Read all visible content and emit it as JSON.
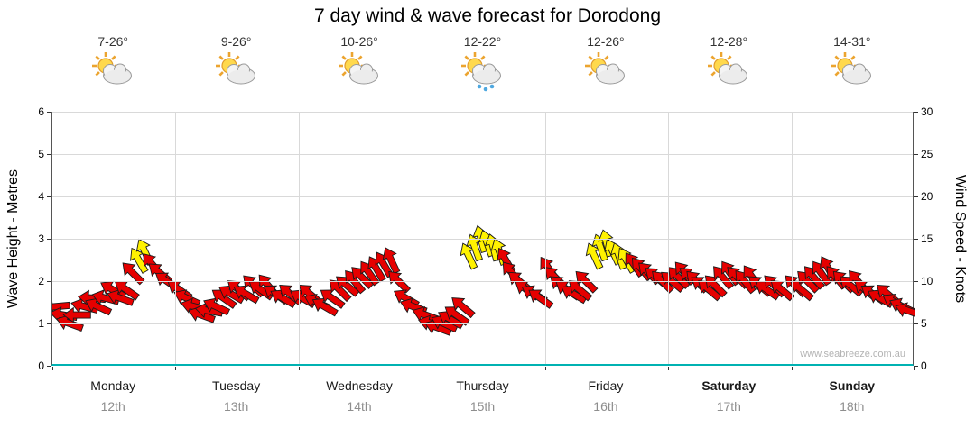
{
  "page": {
    "watermark": "www.seabreeze.com.au"
  },
  "chart_data": {
    "type": "scatter",
    "title": "7 day wind & wave forecast for Dorodong",
    "left_axis": {
      "label": "Wave Height - Metres",
      "min": 0,
      "max": 6,
      "ticks": [
        0,
        1,
        2,
        3,
        4,
        5,
        6
      ]
    },
    "right_axis": {
      "label": "Wind Speed - Knots",
      "min": 0,
      "max": 30,
      "ticks": [
        0,
        5,
        10,
        15,
        20,
        25,
        30
      ]
    },
    "grid": "on",
    "days": [
      {
        "name": "Monday",
        "date": "12th",
        "temp": "7-26°",
        "icon": "sun-cloud",
        "weekend": false
      },
      {
        "name": "Tuesday",
        "date": "13th",
        "temp": "9-26°",
        "icon": "sun-cloud",
        "weekend": false
      },
      {
        "name": "Wednesday",
        "date": "14th",
        "temp": "10-26°",
        "icon": "sun-cloud",
        "weekend": false
      },
      {
        "name": "Thursday",
        "date": "15th",
        "temp": "12-22°",
        "icon": "sun-cloud-rain",
        "weekend": false
      },
      {
        "name": "Friday",
        "date": "16th",
        "temp": "12-26°",
        "icon": "sun-cloud",
        "weekend": false
      },
      {
        "name": "Saturday",
        "date": "17th",
        "temp": "12-28°",
        "icon": "sun-cloud",
        "weekend": true
      },
      {
        "name": "Sunday",
        "date": "18th",
        "temp": "14-31°",
        "icon": "sun-cloud",
        "weekend": true
      }
    ],
    "colors": {
      "r": "#e60000",
      "y": "#fff200",
      "wave_line": "#00b2b2"
    },
    "arrow_format": [
      "day_fraction_0_to_7",
      "wind_speed_knots",
      "direction_deg_0_is_up_negative_is_left",
      "color_r_red_y_yellow"
    ],
    "wind_arrows": [
      [
        0.03,
        7,
        -95,
        "r"
      ],
      [
        0.09,
        6,
        -80,
        "r"
      ],
      [
        0.14,
        5,
        -70,
        "r"
      ],
      [
        0.2,
        6,
        -90,
        "r"
      ],
      [
        0.26,
        7,
        -75,
        "r"
      ],
      [
        0.32,
        8,
        -85,
        "r"
      ],
      [
        0.37,
        7,
        -65,
        "r"
      ],
      [
        0.43,
        8,
        -75,
        "r"
      ],
      [
        0.49,
        9,
        -60,
        "r"
      ],
      [
        0.55,
        8,
        -70,
        "r"
      ],
      [
        0.6,
        9,
        -55,
        "r"
      ],
      [
        0.65,
        11,
        -45,
        "r"
      ],
      [
        0.7,
        12.5,
        -30,
        "y"
      ],
      [
        0.75,
        13.5,
        -25,
        "y"
      ],
      [
        0.81,
        12,
        -40,
        "r"
      ],
      [
        0.87,
        11,
        -50,
        "r"
      ],
      [
        0.93,
        10,
        -55,
        "r"
      ],
      [
        1.03,
        9,
        -55,
        "r"
      ],
      [
        1.09,
        8,
        -65,
        "r"
      ],
      [
        1.15,
        7,
        -75,
        "r"
      ],
      [
        1.21,
        6,
        -70,
        "r"
      ],
      [
        1.27,
        6.5,
        -80,
        "r"
      ],
      [
        1.33,
        7,
        -65,
        "r"
      ],
      [
        1.39,
        8,
        -55,
        "r"
      ],
      [
        1.45,
        8.5,
        -60,
        "r"
      ],
      [
        1.51,
        9,
        -50,
        "r"
      ],
      [
        1.57,
        8.5,
        -60,
        "r"
      ],
      [
        1.63,
        9.5,
        -45,
        "r"
      ],
      [
        1.69,
        9,
        -55,
        "r"
      ],
      [
        1.75,
        9.5,
        -40,
        "r"
      ],
      [
        1.81,
        8.5,
        -55,
        "r"
      ],
      [
        1.87,
        8,
        -60,
        "r"
      ],
      [
        1.93,
        8.5,
        -50,
        "r"
      ],
      [
        2.03,
        8,
        -60,
        "r"
      ],
      [
        2.09,
        8.5,
        -50,
        "r"
      ],
      [
        2.15,
        7.5,
        -65,
        "r"
      ],
      [
        2.21,
        7,
        -60,
        "r"
      ],
      [
        2.27,
        8,
        -55,
        "r"
      ],
      [
        2.33,
        9,
        -45,
        "r"
      ],
      [
        2.39,
        9.5,
        -50,
        "r"
      ],
      [
        2.45,
        10,
        -40,
        "r"
      ],
      [
        2.51,
        10.5,
        -45,
        "r"
      ],
      [
        2.57,
        11,
        -35,
        "r"
      ],
      [
        2.63,
        11.5,
        -30,
        "r"
      ],
      [
        2.69,
        12,
        -30,
        "r"
      ],
      [
        2.75,
        12.5,
        -25,
        "r"
      ],
      [
        2.81,
        10,
        -45,
        "r"
      ],
      [
        2.87,
        8,
        -60,
        "r"
      ],
      [
        2.93,
        7,
        -70,
        "r"
      ],
      [
        3.03,
        6,
        -70,
        "r"
      ],
      [
        3.08,
        5,
        -75,
        "r"
      ],
      [
        3.13,
        4.5,
        -70,
        "r"
      ],
      [
        3.18,
        5,
        -65,
        "r"
      ],
      [
        3.23,
        5.5,
        -60,
        "r"
      ],
      [
        3.28,
        6,
        -55,
        "r"
      ],
      [
        3.33,
        7,
        -50,
        "r"
      ],
      [
        3.38,
        13,
        -25,
        "y"
      ],
      [
        3.43,
        14,
        -20,
        "y"
      ],
      [
        3.48,
        15,
        -15,
        "y"
      ],
      [
        3.53,
        14.5,
        -20,
        "y"
      ],
      [
        3.58,
        14,
        -15,
        "y"
      ],
      [
        3.63,
        13.5,
        -20,
        "y"
      ],
      [
        3.68,
        12.5,
        -30,
        "r"
      ],
      [
        3.73,
        11,
        -40,
        "r"
      ],
      [
        3.79,
        10,
        -50,
        "r"
      ],
      [
        3.85,
        9,
        -55,
        "r"
      ],
      [
        3.91,
        8.5,
        -60,
        "r"
      ],
      [
        3.96,
        8,
        -55,
        "r"
      ],
      [
        4.03,
        11.5,
        -35,
        "r"
      ],
      [
        4.08,
        10.5,
        -45,
        "r"
      ],
      [
        4.13,
        9.5,
        -50,
        "r"
      ],
      [
        4.18,
        9,
        -55,
        "r"
      ],
      [
        4.23,
        8.5,
        -60,
        "r"
      ],
      [
        4.28,
        9,
        -50,
        "r"
      ],
      [
        4.33,
        10,
        -45,
        "r"
      ],
      [
        4.4,
        13,
        -25,
        "y"
      ],
      [
        4.45,
        14,
        -20,
        "y"
      ],
      [
        4.5,
        14.5,
        -15,
        "y"
      ],
      [
        4.55,
        13.5,
        -25,
        "y"
      ],
      [
        4.6,
        13,
        -20,
        "y"
      ],
      [
        4.66,
        12.5,
        -30,
        "y"
      ],
      [
        4.72,
        12,
        -35,
        "r"
      ],
      [
        4.78,
        11.5,
        -40,
        "r"
      ],
      [
        4.84,
        11,
        -45,
        "r"
      ],
      [
        4.9,
        10.5,
        -50,
        "r"
      ],
      [
        4.95,
        10,
        -45,
        "r"
      ],
      [
        5.03,
        10,
        -50,
        "r"
      ],
      [
        5.08,
        10.5,
        -45,
        "r"
      ],
      [
        5.13,
        11,
        -40,
        "r"
      ],
      [
        5.18,
        10.5,
        -50,
        "r"
      ],
      [
        5.23,
        10,
        -45,
        "r"
      ],
      [
        5.28,
        9.5,
        -55,
        "r"
      ],
      [
        5.33,
        9,
        -50,
        "r"
      ],
      [
        5.38,
        9.5,
        -45,
        "r"
      ],
      [
        5.44,
        10.5,
        -40,
        "r"
      ],
      [
        5.5,
        11,
        -35,
        "r"
      ],
      [
        5.56,
        10.5,
        -45,
        "r"
      ],
      [
        5.62,
        10,
        -40,
        "r"
      ],
      [
        5.68,
        10.5,
        -35,
        "r"
      ],
      [
        5.74,
        9.5,
        -50,
        "r"
      ],
      [
        5.8,
        9,
        -55,
        "r"
      ],
      [
        5.86,
        9.5,
        -45,
        "r"
      ],
      [
        5.92,
        9,
        -50,
        "r"
      ],
      [
        6.03,
        9.5,
        -45,
        "r"
      ],
      [
        6.08,
        9,
        -50,
        "r"
      ],
      [
        6.13,
        10,
        -45,
        "r"
      ],
      [
        6.18,
        10.5,
        -40,
        "r"
      ],
      [
        6.24,
        11,
        -35,
        "r"
      ],
      [
        6.3,
        11.5,
        -30,
        "r"
      ],
      [
        6.36,
        10.5,
        -40,
        "r"
      ],
      [
        6.42,
        10,
        -45,
        "r"
      ],
      [
        6.48,
        9.5,
        -50,
        "r"
      ],
      [
        6.54,
        10,
        -40,
        "r"
      ],
      [
        6.6,
        9,
        -50,
        "r"
      ],
      [
        6.66,
        8.5,
        -55,
        "r"
      ],
      [
        6.72,
        8,
        -60,
        "r"
      ],
      [
        6.78,
        8.5,
        -50,
        "r"
      ],
      [
        6.84,
        7.5,
        -60,
        "r"
      ],
      [
        6.9,
        7,
        -65,
        "r"
      ],
      [
        6.95,
        6.5,
        -70,
        "r"
      ]
    ],
    "wave_height_series": {
      "description": "flat line at approximately 0 metres across all 7 days",
      "value_metres": 0
    }
  }
}
